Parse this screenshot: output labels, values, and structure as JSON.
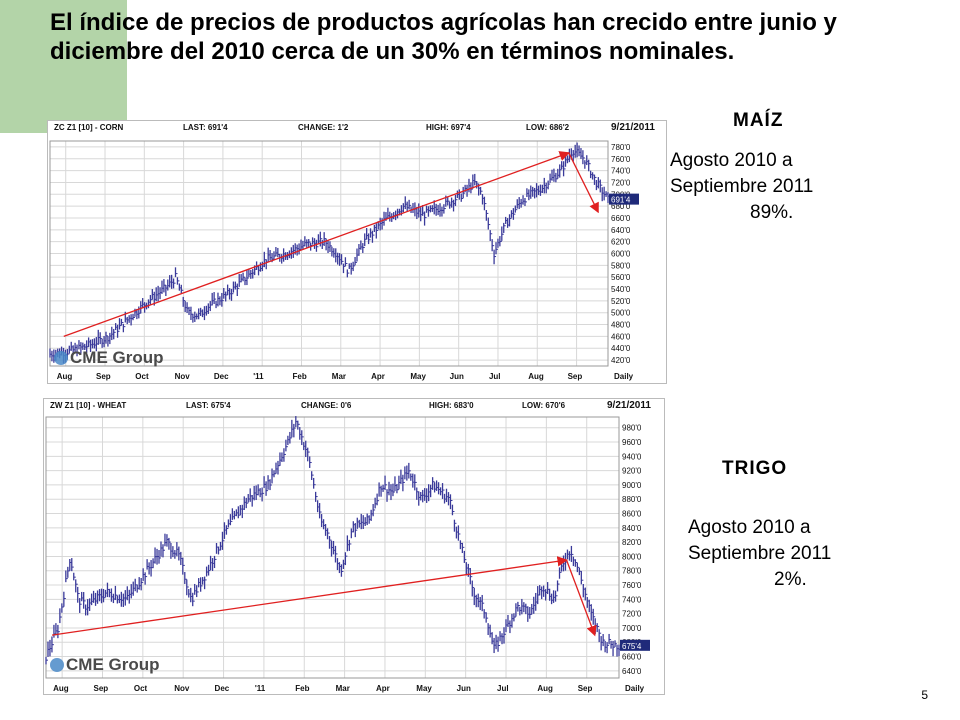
{
  "slide": {
    "title": "El índice de precios de productos agrícolas han crecido entre junio y diciembre del 2010 cerca de un 30% en términos nominales.",
    "page_number": "5",
    "accent_color": "#b3d4a8",
    "arrow_color": "#e02020",
    "bar_color": "#3a3a9a"
  },
  "corn": {
    "label": "MAÍZ",
    "text_line1": "Agosto 2010 a",
    "text_line2": "Septiembre  2011",
    "text_line3": "89%."
  },
  "wheat": {
    "label": "TRIGO",
    "text_line1": "Agosto 2010 a",
    "text_line2": "Septiembre  2011",
    "text_line3": "2%."
  },
  "chart_data": [
    {
      "type": "bar",
      "subtype": "ohlc",
      "symbol": "ZC Z1 [10] - CORN",
      "last": "LAST: 691'4",
      "change": "CHANGE: 1'2",
      "high": "HIGH: 697'4",
      "low": "LOW: 686'2",
      "date": "9/21/2011",
      "watermark": "CME Group",
      "period_label": "Daily",
      "x_ticks": [
        "Aug",
        "Sep",
        "Oct",
        "Nov",
        "Dec",
        "'11",
        "Feb",
        "Mar",
        "Apr",
        "May",
        "Jun",
        "Jul",
        "Aug",
        "Sep"
      ],
      "y_ticks": [
        "780'0",
        "760'0",
        "740'0",
        "720'0",
        "700'0",
        "680'0",
        "660'0",
        "640'0",
        "620'0",
        "600'0",
        "580'0",
        "560'0",
        "540'0",
        "520'0",
        "500'0",
        "480'0",
        "460'0",
        "440'0",
        "420'0"
      ],
      "last_tag": "691'4",
      "ylim": [
        410,
        790
      ],
      "x_months": [
        0,
        1,
        2,
        3,
        4,
        5,
        6,
        7,
        8,
        9,
        10,
        11,
        12,
        13,
        14.2
      ],
      "close": [
        [
          0,
          430
        ],
        [
          0.5,
          435
        ],
        [
          1,
          445
        ],
        [
          1.5,
          460
        ],
        [
          2,
          490
        ],
        [
          2.5,
          520
        ],
        [
          3,
          545
        ],
        [
          3.2,
          560
        ],
        [
          3.5,
          500
        ],
        [
          3.8,
          495
        ],
        [
          4,
          510
        ],
        [
          4.5,
          530
        ],
        [
          5,
          560
        ],
        [
          5.5,
          590
        ],
        [
          6,
          600
        ],
        [
          6.5,
          615
        ],
        [
          7,
          620
        ],
        [
          7.3,
          600
        ],
        [
          7.6,
          570
        ],
        [
          8,
          620
        ],
        [
          8.5,
          655
        ],
        [
          9,
          680
        ],
        [
          9.5,
          665
        ],
        [
          10,
          680
        ],
        [
          10.5,
          700
        ],
        [
          10.8,
          720
        ],
        [
          11,
          700
        ],
        [
          11.3,
          600
        ],
        [
          11.6,
          650
        ],
        [
          12,
          690
        ],
        [
          12.5,
          710
        ],
        [
          13,
          740
        ],
        [
          13.3,
          775
        ],
        [
          13.6,
          760
        ],
        [
          13.9,
          720
        ],
        [
          14.2,
          691
        ]
      ],
      "annotations": [
        {
          "from": [
            0.35,
            460
          ],
          "to": [
            13.2,
            770
          ]
        },
        {
          "from": [
            13.2,
            770
          ],
          "to": [
            13.95,
            670
          ]
        }
      ]
    },
    {
      "type": "bar",
      "subtype": "ohlc",
      "symbol": "ZW Z1 [10] - WHEAT",
      "last": "LAST: 675'4",
      "change": "CHANGE: 0'6",
      "high": "HIGH: 683'0",
      "low": "LOW: 670'6",
      "date": "9/21/2011",
      "watermark": "CME Group",
      "period_label": "Daily",
      "x_ticks": [
        "Aug",
        "Sep",
        "Oct",
        "Nov",
        "Dec",
        "'11",
        "Feb",
        "Mar",
        "Apr",
        "May",
        "Jun",
        "Jul",
        "Aug",
        "Sep"
      ],
      "y_ticks": [
        "980'0",
        "960'0",
        "940'0",
        "920'0",
        "900'0",
        "880'0",
        "860'0",
        "840'0",
        "820'0",
        "800'0",
        "780'0",
        "760'0",
        "740'0",
        "720'0",
        "700'0",
        "680'0",
        "660'0",
        "640'0"
      ],
      "last_tag": "675'4",
      "ylim": [
        630,
        995
      ],
      "x_months": [
        0,
        1,
        2,
        3,
        4,
        5,
        6,
        7,
        8,
        9,
        10,
        11,
        12,
        13,
        14.2
      ],
      "close": [
        [
          0,
          660
        ],
        [
          0.3,
          700
        ],
        [
          0.6,
          800
        ],
        [
          0.8,
          740
        ],
        [
          1,
          730
        ],
        [
          1.5,
          750
        ],
        [
          2,
          740
        ],
        [
          2.5,
          780
        ],
        [
          3,
          820
        ],
        [
          3.3,
          800
        ],
        [
          3.6,
          740
        ],
        [
          4,
          780
        ],
        [
          4.5,
          840
        ],
        [
          5,
          880
        ],
        [
          5.5,
          900
        ],
        [
          6,
          960
        ],
        [
          6.2,
          990
        ],
        [
          6.5,
          940
        ],
        [
          6.8,
          850
        ],
        [
          7,
          830
        ],
        [
          7.3,
          780
        ],
        [
          7.6,
          840
        ],
        [
          8,
          850
        ],
        [
          8.3,
          900
        ],
        [
          8.6,
          890
        ],
        [
          9,
          920
        ],
        [
          9.3,
          880
        ],
        [
          9.6,
          900
        ],
        [
          10,
          880
        ],
        [
          10.3,
          810
        ],
        [
          10.6,
          750
        ],
        [
          10.9,
          720
        ],
        [
          11.1,
          670
        ],
        [
          11.4,
          700
        ],
        [
          11.7,
          730
        ],
        [
          12,
          720
        ],
        [
          12.3,
          760
        ],
        [
          12.6,
          740
        ],
        [
          12.8,
          790
        ],
        [
          13,
          810
        ],
        [
          13.2,
          780
        ],
        [
          13.5,
          720
        ],
        [
          13.8,
          680
        ],
        [
          14.2,
          675
        ]
      ],
      "annotations": [
        {
          "from": [
            0.15,
            690
          ],
          "to": [
            12.9,
            795
          ]
        },
        {
          "from": [
            12.9,
            795
          ],
          "to": [
            13.6,
            690
          ]
        }
      ]
    }
  ]
}
